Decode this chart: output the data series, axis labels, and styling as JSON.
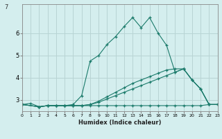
{
  "title": "",
  "xlabel": "Humidex (Indice chaleur)",
  "bg_color": "#d4eeee",
  "grid_color": "#b8d4d4",
  "line_color": "#1a7a6a",
  "xlim": [
    0,
    23
  ],
  "ylim": [
    2.5,
    7.3
  ],
  "yticks": [
    3,
    4,
    5,
    6
  ],
  "xticks": [
    0,
    1,
    2,
    3,
    4,
    5,
    6,
    7,
    8,
    9,
    10,
    11,
    12,
    13,
    14,
    15,
    16,
    17,
    18,
    19,
    20,
    21,
    22,
    23
  ],
  "series": [
    {
      "x": [
        0,
        1,
        2,
        3,
        4,
        5,
        6,
        7,
        8,
        9,
        10,
        11,
        12,
        13,
        14,
        15,
        16,
        17,
        18,
        19,
        20,
        21,
        22,
        23
      ],
      "y": [
        2.8,
        2.85,
        2.7,
        2.75,
        2.75,
        2.75,
        2.8,
        3.2,
        4.75,
        5.0,
        5.5,
        5.85,
        6.3,
        6.7,
        6.25,
        6.7,
        6.0,
        5.45,
        4.25,
        4.4,
        3.9,
        3.5,
        2.8,
        2.8
      ]
    },
    {
      "x": [
        0,
        2,
        3,
        4,
        5,
        6,
        7,
        8,
        9,
        10,
        11,
        12,
        13,
        14,
        15,
        16,
        17,
        18,
        19,
        20,
        21,
        22,
        23
      ],
      "y": [
        2.8,
        2.7,
        2.75,
        2.75,
        2.75,
        2.75,
        2.75,
        2.75,
        2.75,
        2.75,
        2.75,
        2.75,
        2.75,
        2.75,
        2.75,
        2.75,
        2.75,
        2.75,
        2.75,
        2.75,
        2.75,
        2.8,
        2.8
      ]
    },
    {
      "x": [
        0,
        2,
        3,
        4,
        5,
        6,
        7,
        8,
        9,
        10,
        11,
        12,
        13,
        14,
        15,
        16,
        17,
        18,
        19,
        20,
        21,
        22,
        23
      ],
      "y": [
        2.8,
        2.7,
        2.75,
        2.75,
        2.75,
        2.75,
        2.75,
        2.8,
        2.9,
        3.05,
        3.2,
        3.35,
        3.5,
        3.65,
        3.8,
        3.95,
        4.1,
        4.25,
        4.4,
        3.9,
        3.5,
        2.8,
        2.8
      ]
    },
    {
      "x": [
        0,
        2,
        3,
        4,
        5,
        6,
        7,
        8,
        9,
        10,
        11,
        12,
        13,
        14,
        15,
        16,
        17,
        18,
        19,
        20,
        21,
        22,
        23
      ],
      "y": [
        2.8,
        2.7,
        2.75,
        2.75,
        2.75,
        2.75,
        2.75,
        2.8,
        2.95,
        3.15,
        3.35,
        3.55,
        3.75,
        3.9,
        4.05,
        4.2,
        4.35,
        4.4,
        4.4,
        3.9,
        3.5,
        2.8,
        2.8
      ]
    }
  ]
}
